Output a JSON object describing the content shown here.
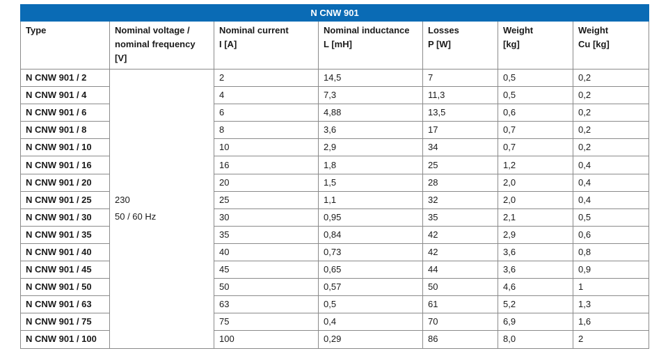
{
  "title": "N CNW 901",
  "headers": {
    "type": [
      "Type"
    ],
    "voltage": [
      "Nominal voltage /",
      "nominal frequency",
      "[V]"
    ],
    "current": [
      "Nominal current",
      "I [A]"
    ],
    "inductance": [
      "Nominal inductance",
      "L [mH]"
    ],
    "losses": [
      "Losses",
      "P [W]"
    ],
    "weight": [
      "Weight",
      "[kg]"
    ],
    "weight_cu": [
      "Weight",
      "Cu [kg]"
    ]
  },
  "voltage_value": "230",
  "frequency_value": "50 / 60 Hz",
  "rows": [
    {
      "type": "N CNW 901 / 2",
      "current": "2",
      "inductance": "14,5",
      "losses": "7",
      "weight": "0,5",
      "weight_cu": "0,2"
    },
    {
      "type": "N CNW 901 / 4",
      "current": "4",
      "inductance": "7,3",
      "losses": "11,3",
      "weight": "0,5",
      "weight_cu": "0,2"
    },
    {
      "type": "N CNW 901 / 6",
      "current": "6",
      "inductance": "4,88",
      "losses": "13,5",
      "weight": "0,6",
      "weight_cu": "0,2"
    },
    {
      "type": "N CNW 901 / 8",
      "current": "8",
      "inductance": "3,6",
      "losses": "17",
      "weight": "0,7",
      "weight_cu": "0,2"
    },
    {
      "type": "N CNW 901 / 10",
      "current": "10",
      "inductance": "2,9",
      "losses": "34",
      "weight": "0,7",
      "weight_cu": "0,2"
    },
    {
      "type": "N CNW 901 / 16",
      "current": "16",
      "inductance": "1,8",
      "losses": "25",
      "weight": "1,2",
      "weight_cu": "0,4"
    },
    {
      "type": "N CNW 901 / 20",
      "current": "20",
      "inductance": "1,5",
      "losses": "28",
      "weight": "2,0",
      "weight_cu": "0,4"
    },
    {
      "type": "N CNW 901 / 25",
      "current": "25",
      "inductance": "1,1",
      "losses": "32",
      "weight": "2,0",
      "weight_cu": "0,4"
    },
    {
      "type": "N CNW 901 / 30",
      "current": "30",
      "inductance": "0,95",
      "losses": "35",
      "weight": "2,1",
      "weight_cu": "0,5"
    },
    {
      "type": "N CNW 901 / 35",
      "current": "35",
      "inductance": "0,84",
      "losses": "42",
      "weight": "2,9",
      "weight_cu": "0,6"
    },
    {
      "type": "N CNW 901 / 40",
      "current": "40",
      "inductance": "0,73",
      "losses": "42",
      "weight": "3,6",
      "weight_cu": "0,8"
    },
    {
      "type": "N CNW 901 / 45",
      "current": "45",
      "inductance": "0,65",
      "losses": "44",
      "weight": "3,6",
      "weight_cu": "0,9"
    },
    {
      "type": "N CNW 901 / 50",
      "current": "50",
      "inductance": "0,57",
      "losses": "50",
      "weight": "4,6",
      "weight_cu": "1"
    },
    {
      "type": "N CNW 901 / 63",
      "current": "63",
      "inductance": "0,5",
      "losses": "61",
      "weight": "5,2",
      "weight_cu": "1,3"
    },
    {
      "type": "N CNW 901 / 75",
      "current": "75",
      "inductance": "0,4",
      "losses": "70",
      "weight": "6,9",
      "weight_cu": "1,6"
    },
    {
      "type": "N CNW 901 / 100",
      "current": "100",
      "inductance": "0,29",
      "losses": "86",
      "weight": "8,0",
      "weight_cu": "2"
    }
  ],
  "colors": {
    "header_bg": "#0a6bb5",
    "header_text": "#ffffff",
    "border": "#8a8a8a"
  }
}
